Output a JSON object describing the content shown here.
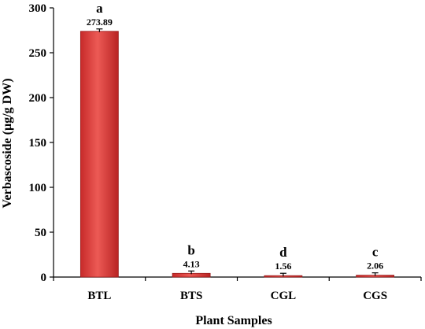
{
  "chart_data": {
    "type": "bar",
    "xlabel": "Plant Samples",
    "ylabel": "Verbascoside (µg/g DW)",
    "categories": [
      "BTL",
      "BTS",
      "CGL",
      "CGS"
    ],
    "values": [
      273.89,
      4.13,
      1.56,
      2.06
    ],
    "value_labels": [
      "273.89",
      "4.13",
      "1.56",
      "2.06"
    ],
    "group_letters": [
      "a",
      "b",
      "d",
      "c"
    ],
    "ylim": [
      0,
      300
    ],
    "yticks": [
      0,
      50,
      100,
      150,
      200,
      250,
      300
    ],
    "error_bars": true,
    "grid": false,
    "bar_color": "#d93a3a"
  }
}
